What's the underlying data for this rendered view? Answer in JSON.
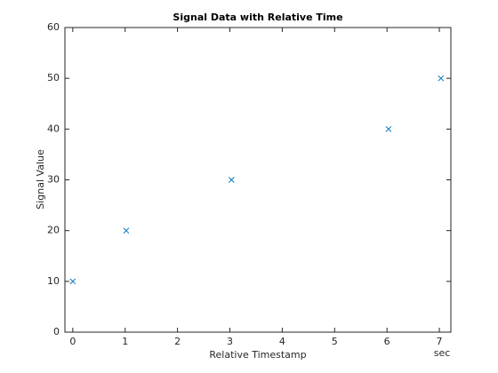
{
  "chart_data": {
    "type": "scatter",
    "title": "Signal Data with Relative Time",
    "x_label": "Relative Timestamp",
    "y_label": "Signal Value",
    "x_unit": "sec",
    "x": [
      0,
      1.02,
      3.03,
      6.03,
      7.03
    ],
    "series": [
      {
        "color": "#0072bd",
        "marker": "x",
        "values": [
          10,
          20,
          30,
          40,
          50
        ]
      }
    ],
    "xlim": [
      -0.15,
      7.22
    ],
    "xticks": [
      0,
      1,
      2,
      3,
      4,
      5,
      6,
      7
    ],
    "ylim": [
      0,
      60
    ],
    "yticks": [
      0,
      10,
      20,
      30,
      40,
      50,
      60
    ],
    "grid": false,
    "box": true
  }
}
